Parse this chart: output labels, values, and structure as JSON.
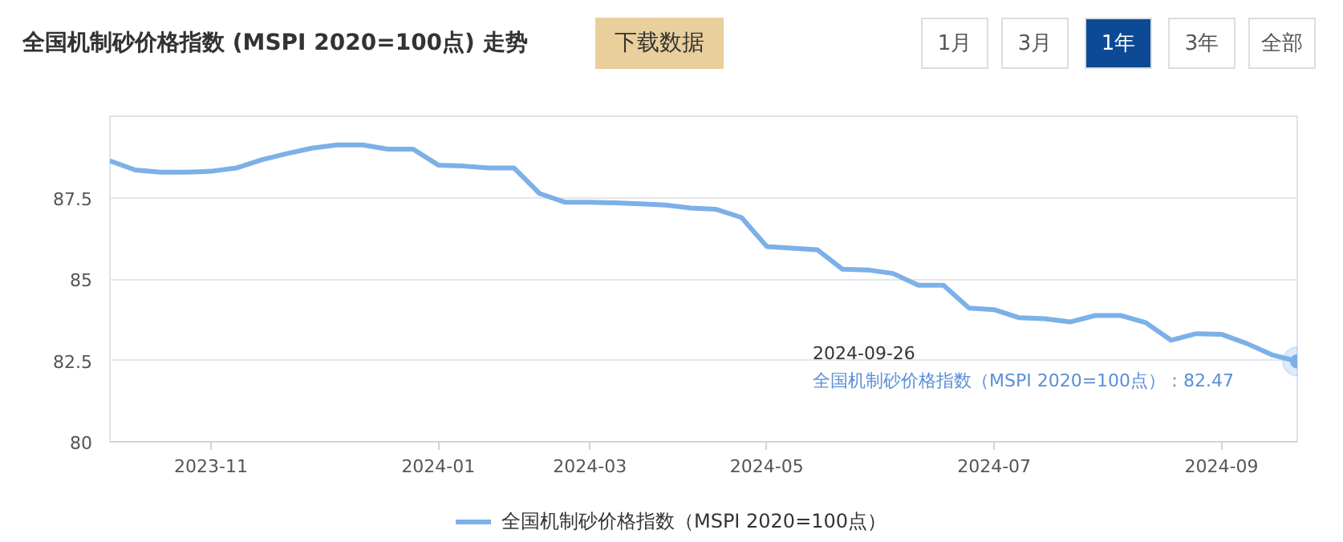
{
  "chart_data": {
    "type": "line",
    "title": "全国机制砂价格指数 (MSPI 2020=100点) 走势",
    "categories": [
      null,
      null,
      null,
      null,
      "2023-11",
      null,
      null,
      null,
      null,
      null,
      null,
      null,
      null,
      "2024-01",
      null,
      null,
      null,
      null,
      null,
      "2024-03",
      null,
      null,
      null,
      null,
      null,
      null,
      "2024-05",
      null,
      null,
      null,
      null,
      null,
      null,
      null,
      null,
      "2024-07",
      null,
      null,
      null,
      null,
      null,
      null,
      null,
      null,
      "2024-09",
      null,
      null,
      null
    ],
    "series": [
      {
        "name": "全国机制砂价格指数（MSPI 2020=100点）",
        "color": "#7cb0e8",
        "values": [
          88.63,
          88.35,
          88.28,
          88.28,
          88.31,
          88.41,
          88.66,
          88.85,
          89.02,
          89.12,
          89.12,
          88.99,
          88.99,
          88.5,
          88.47,
          88.41,
          88.41,
          87.63,
          87.36,
          87.36,
          87.34,
          87.31,
          87.27,
          87.18,
          87.14,
          86.89,
          86.0,
          85.95,
          85.9,
          85.3,
          85.28,
          85.17,
          84.81,
          84.81,
          84.11,
          84.06,
          83.81,
          83.78,
          83.68,
          83.88,
          83.88,
          83.66,
          83.12,
          83.32,
          83.3,
          83.02,
          82.67,
          82.47
        ]
      }
    ],
    "ylim": [
      80,
      90
    ],
    "yticks": [
      80,
      82.5,
      85,
      87.5,
      {
        "value": 90,
        "label": null
      }
    ],
    "grid": "y",
    "legend": "bottom",
    "marker": "none",
    "line_style": "solid",
    "annotations": [
      "2024-09-26\n全国机制砂价格指数（MSPI 2020=100点）：82.47",
      "下载数据",
      "1月",
      "3月",
      "1年",
      "3年",
      "全部"
    ]
  }
}
